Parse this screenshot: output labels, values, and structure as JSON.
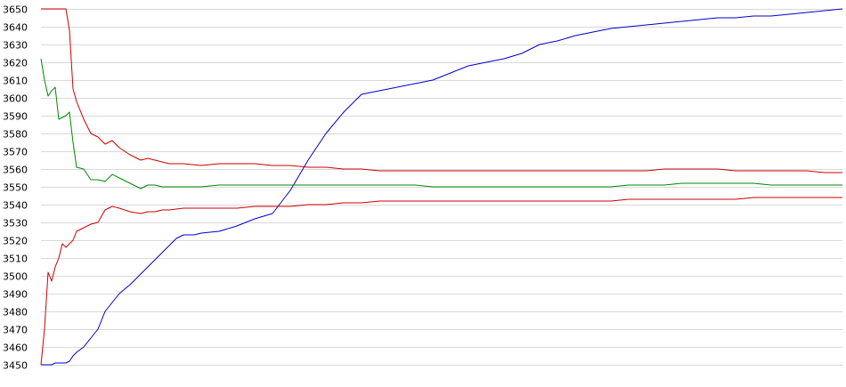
{
  "chart_data": {
    "type": "line",
    "title": "",
    "xlabel": "",
    "ylabel": "",
    "ylim": [
      3450,
      3650
    ],
    "xlim": [
      0,
      225
    ],
    "grid": true,
    "legend": "none",
    "y_ticks": [
      "3450",
      "3460",
      "3470",
      "3480",
      "3490",
      "3500",
      "3510",
      "3520",
      "3530",
      "3540",
      "3550",
      "3560",
      "3570",
      "3580",
      "3590",
      "3600",
      "3610",
      "3620",
      "3630",
      "3640",
      "3650"
    ],
    "series": [
      {
        "color": "#0000cc",
        "x": [
          0,
          3,
          4,
          7,
          8,
          9,
          10,
          12,
          14,
          16,
          18,
          22,
          25,
          30,
          35,
          38,
          40,
          43,
          45,
          50,
          55,
          60,
          65,
          70,
          75,
          80,
          85,
          90,
          95,
          100,
          105,
          110,
          115,
          120,
          125,
          130,
          135,
          140,
          145,
          150,
          155,
          160,
          165,
          170,
          175,
          180,
          185,
          190,
          195,
          200,
          205,
          210,
          215,
          220,
          225
        ],
        "values": [
          3450,
          3450,
          3451,
          3451,
          3452,
          3455,
          3457,
          3460,
          3465,
          3470,
          3480,
          3490,
          3495,
          3505,
          3515,
          3521,
          3523,
          3523,
          3524,
          3525,
          3528,
          3532,
          3535,
          3548,
          3565,
          3580,
          3592,
          3602,
          3604,
          3606,
          3608,
          3610,
          3614,
          3618,
          3620,
          3622,
          3625,
          3630,
          3632,
          3635,
          3637,
          3639,
          3640,
          3641,
          3642,
          3643,
          3644,
          3645,
          3645,
          3646,
          3646,
          3647,
          3648,
          3649,
          3650
        ]
      },
      {
        "color": "#cc0000",
        "x": [
          0,
          1,
          2,
          3,
          4,
          5,
          6,
          7,
          8,
          9,
          10,
          12,
          14,
          16,
          18,
          20,
          22,
          25,
          28,
          30,
          32,
          34,
          36,
          40,
          45,
          50,
          55,
          60,
          65,
          70,
          75,
          80,
          85,
          90,
          95,
          100,
          105,
          110,
          115,
          120,
          125,
          130,
          135,
          140,
          145,
          150,
          155,
          160,
          165,
          170,
          175,
          180,
          185,
          190,
          195,
          200,
          205,
          210,
          215,
          220,
          225
        ],
        "values": [
          3650,
          3650,
          3650,
          3650,
          3650,
          3650,
          3650,
          3650,
          3638,
          3605,
          3598,
          3588,
          3580,
          3578,
          3574,
          3576,
          3572,
          3568,
          3565,
          3566,
          3565,
          3564,
          3563,
          3563,
          3562,
          3563,
          3563,
          3563,
          3562,
          3562,
          3561,
          3561,
          3560,
          3560,
          3559,
          3559,
          3559,
          3559,
          3559,
          3559,
          3559,
          3559,
          3559,
          3559,
          3559,
          3559,
          3559,
          3559,
          3559,
          3559,
          3560,
          3560,
          3560,
          3560,
          3559,
          3559,
          3559,
          3559,
          3559,
          3558,
          3558
        ]
      },
      {
        "color": "#008800",
        "x": [
          0,
          1,
          2,
          3,
          4,
          5,
          6,
          7,
          8,
          9,
          10,
          12,
          14,
          16,
          18,
          20,
          22,
          25,
          28,
          30,
          32,
          34,
          36,
          40,
          45,
          50,
          55,
          60,
          65,
          70,
          75,
          80,
          85,
          90,
          95,
          100,
          105,
          110,
          115,
          120,
          125,
          130,
          135,
          140,
          145,
          150,
          155,
          160,
          165,
          170,
          175,
          180,
          185,
          190,
          195,
          200,
          205,
          210,
          215,
          220,
          225
        ],
        "values": [
          3622,
          3610,
          3601,
          3604,
          3606,
          3588,
          3589,
          3590,
          3592,
          3575,
          3561,
          3560,
          3554,
          3554,
          3553,
          3557,
          3555,
          3552,
          3549,
          3551,
          3551,
          3550,
          3550,
          3550,
          3550,
          3551,
          3551,
          3551,
          3551,
          3551,
          3551,
          3551,
          3551,
          3551,
          3551,
          3551,
          3551,
          3550,
          3550,
          3550,
          3550,
          3550,
          3550,
          3550,
          3550,
          3550,
          3550,
          3550,
          3551,
          3551,
          3551,
          3552,
          3552,
          3552,
          3552,
          3552,
          3551,
          3551,
          3551,
          3551,
          3551
        ]
      },
      {
        "color": "#cc0000",
        "x": [
          0,
          1,
          2,
          3,
          4,
          5,
          6,
          7,
          8,
          9,
          10,
          12,
          14,
          16,
          18,
          20,
          22,
          25,
          28,
          30,
          32,
          34,
          36,
          40,
          45,
          50,
          55,
          60,
          65,
          70,
          75,
          80,
          85,
          90,
          95,
          100,
          105,
          110,
          115,
          120,
          125,
          130,
          135,
          140,
          145,
          150,
          155,
          160,
          165,
          170,
          175,
          180,
          185,
          190,
          195,
          200,
          205,
          210,
          215,
          220,
          225
        ],
        "values": [
          3450,
          3470,
          3502,
          3497,
          3505,
          3510,
          3518,
          3516,
          3518,
          3520,
          3525,
          3527,
          3529,
          3530,
          3537,
          3539,
          3538,
          3536,
          3535,
          3536,
          3536,
          3537,
          3537,
          3538,
          3538,
          3538,
          3538,
          3539,
          3539,
          3539,
          3540,
          3540,
          3541,
          3541,
          3542,
          3542,
          3542,
          3542,
          3542,
          3542,
          3542,
          3542,
          3542,
          3542,
          3542,
          3542,
          3542,
          3542,
          3543,
          3543,
          3543,
          3543,
          3543,
          3543,
          3543,
          3544,
          3544,
          3544,
          3544,
          3544,
          3544
        ]
      }
    ]
  }
}
